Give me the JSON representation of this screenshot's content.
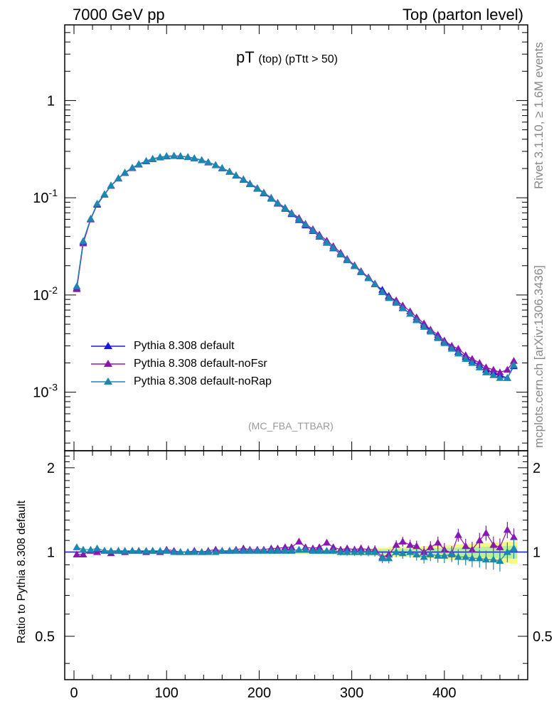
{
  "header": {
    "left": "7000 GeV pp",
    "right": "Top (parton level)"
  },
  "side": {
    "rivet": "Rivet 3.1.10, ≥ 1.6M events",
    "mcplots": "mcplots.cern.ch [arXiv:1306.3436]"
  },
  "plot": {
    "title_main": "pT",
    "title_sub": "(top) (pTtt > 50)",
    "watermark": "(MC_FBA_TTBAR)"
  },
  "ratio": {
    "ylabel": "Ratio to Pythia 8.308 default"
  },
  "legend": [
    {
      "label": "Pythia 8.308 default",
      "color": "#1a1ad6"
    },
    {
      "label": "Pythia 8.308 default-noFsr",
      "color": "#8a18b0"
    },
    {
      "label": "Pythia 8.308 default-noRap",
      "color": "#1a88b0"
    }
  ],
  "chart_data": [
    {
      "type": "line",
      "title": "pT (top) (pTtt > 50)",
      "xlabel": "",
      "ylabel": "",
      "xlim": [
        -10,
        490
      ],
      "ylim": [
        0.00025,
        6
      ],
      "log_y": true,
      "y_ticks": [
        "1",
        "10^-1",
        "10^-2",
        "10^-3"
      ],
      "x_ticks": [
        "0",
        "100",
        "200",
        "300",
        "400"
      ],
      "series": [
        {
          "name": "Pythia 8.308 default",
          "color": "#1a1ad6",
          "x": [
            3,
            10,
            18,
            25,
            33,
            40,
            48,
            55,
            63,
            70,
            78,
            85,
            93,
            100,
            108,
            115,
            123,
            130,
            138,
            145,
            153,
            160,
            168,
            175,
            183,
            190,
            198,
            205,
            213,
            220,
            228,
            235,
            243,
            250,
            258,
            265,
            273,
            280,
            288,
            295,
            303,
            310,
            318,
            325,
            333,
            340,
            348,
            355,
            363,
            370,
            378,
            385,
            393,
            400,
            408,
            415,
            423,
            430,
            438,
            445,
            453,
            460,
            468,
            475
          ],
          "y": [
            0.0118,
            0.035,
            0.06,
            0.085,
            0.108,
            0.133,
            0.158,
            0.18,
            0.202,
            0.22,
            0.237,
            0.25,
            0.26,
            0.266,
            0.269,
            0.267,
            0.262,
            0.254,
            0.243,
            0.231,
            0.216,
            0.201,
            0.185,
            0.169,
            0.153,
            0.138,
            0.124,
            0.111,
            0.098,
            0.087,
            0.077,
            0.068,
            0.059,
            0.052,
            0.0455,
            0.0398,
            0.0345,
            0.0302,
            0.0262,
            0.0228,
            0.0198,
            0.0172,
            0.0149,
            0.0129,
            0.0113,
            0.0098,
            0.0085,
            0.0074,
            0.0064,
            0.0056,
            0.0049,
            0.0043,
            0.0037,
            0.0033,
            0.0029,
            0.0026,
            0.0023,
            0.0021,
            0.0019,
            0.0017,
            0.0016,
            0.0015,
            0.0014,
            0.00185
          ]
        },
        {
          "name": "Pythia 8.308 default-noFsr",
          "color": "#8a18b0",
          "x": [
            3,
            10,
            18,
            25,
            33,
            40,
            48,
            55,
            63,
            70,
            78,
            85,
            93,
            100,
            108,
            115,
            123,
            130,
            138,
            145,
            153,
            160,
            168,
            175,
            183,
            190,
            198,
            205,
            213,
            220,
            228,
            235,
            243,
            250,
            258,
            265,
            273,
            280,
            288,
            295,
            303,
            310,
            318,
            325,
            333,
            340,
            348,
            355,
            363,
            370,
            378,
            385,
            393,
            400,
            408,
            415,
            423,
            430,
            438,
            445,
            453,
            460,
            468,
            475
          ],
          "y": [
            0.0115,
            0.034,
            0.06,
            0.086,
            0.108,
            0.133,
            0.158,
            0.181,
            0.203,
            0.221,
            0.238,
            0.251,
            0.262,
            0.268,
            0.27,
            0.268,
            0.263,
            0.255,
            0.244,
            0.232,
            0.217,
            0.202,
            0.186,
            0.17,
            0.155,
            0.14,
            0.126,
            0.113,
            0.1,
            0.089,
            0.079,
            0.07,
            0.062,
            0.054,
            0.0475,
            0.0418,
            0.0362,
            0.0318,
            0.0272,
            0.0235,
            0.0202,
            0.0176,
            0.0152,
            0.0131,
            0.0108,
            0.0096,
            0.0088,
            0.0078,
            0.0068,
            0.0059,
            0.0051,
            0.0044,
            0.0039,
            0.0034,
            0.003,
            0.0028,
            0.0024,
            0.0022,
            0.002,
            0.0018,
            0.0017,
            0.0016,
            0.0017,
            0.0021
          ]
        },
        {
          "name": "Pythia 8.308 default-noRap",
          "color": "#1a88b0",
          "x": [
            3,
            10,
            18,
            25,
            33,
            40,
            48,
            55,
            63,
            70,
            78,
            85,
            93,
            100,
            108,
            115,
            123,
            130,
            138,
            145,
            153,
            160,
            168,
            175,
            183,
            190,
            198,
            205,
            213,
            220,
            228,
            235,
            243,
            250,
            258,
            265,
            273,
            280,
            288,
            295,
            303,
            310,
            318,
            325,
            333,
            340,
            348,
            355,
            363,
            370,
            378,
            385,
            393,
            400,
            408,
            415,
            423,
            430,
            438,
            445,
            453,
            460,
            468,
            475
          ],
          "y": [
            0.0123,
            0.036,
            0.061,
            0.087,
            0.109,
            0.134,
            0.159,
            0.182,
            0.204,
            0.222,
            0.239,
            0.252,
            0.262,
            0.268,
            0.27,
            0.268,
            0.263,
            0.255,
            0.244,
            0.232,
            0.217,
            0.202,
            0.186,
            0.17,
            0.154,
            0.139,
            0.125,
            0.112,
            0.099,
            0.088,
            0.078,
            0.069,
            0.06,
            0.053,
            0.046,
            0.0402,
            0.0348,
            0.0305,
            0.0263,
            0.0229,
            0.0198,
            0.0172,
            0.0149,
            0.0129,
            0.0107,
            0.0093,
            0.0083,
            0.0073,
            0.0064,
            0.0055,
            0.0047,
            0.0042,
            0.0036,
            0.0032,
            0.0028,
            0.0025,
            0.0022,
            0.002,
            0.0018,
            0.0016,
            0.0015,
            0.0014,
            0.0014,
            0.0019
          ]
        }
      ]
    },
    {
      "type": "line",
      "title": "",
      "xlabel": "",
      "ylabel": "Ratio to Pythia 8.308 default",
      "xlim": [
        -10,
        490
      ],
      "ylim": [
        0.35,
        2.3
      ],
      "log_y": true,
      "y_ticks": [
        "2",
        "1",
        "0.5"
      ],
      "x_ticks": [
        "0",
        "100",
        "200",
        "300",
        "400"
      ],
      "reference": 1.0,
      "series": [
        {
          "name": "Pythia 8.308 default-noFsr",
          "color": "#8a18b0",
          "x": [
            3,
            10,
            18,
            25,
            33,
            40,
            48,
            55,
            63,
            70,
            78,
            85,
            93,
            100,
            108,
            115,
            123,
            130,
            138,
            145,
            153,
            160,
            168,
            175,
            183,
            190,
            198,
            205,
            213,
            220,
            228,
            235,
            243,
            250,
            258,
            265,
            273,
            280,
            288,
            295,
            303,
            310,
            318,
            325,
            333,
            340,
            348,
            355,
            363,
            370,
            378,
            385,
            393,
            400,
            408,
            415,
            423,
            430,
            438,
            445,
            453,
            460,
            468,
            475
          ],
          "y": [
            0.98,
            0.98,
            1.01,
            1.0,
            1.01,
            0.99,
            1.01,
            1.0,
            1.01,
            1.01,
            1.0,
            1.01,
            1.0,
            1.02,
            1.01,
            1.0,
            1.0,
            1.01,
            1.0,
            1.01,
            1.02,
            1.01,
            1.01,
            1.02,
            1.03,
            1.02,
            1.02,
            1.02,
            1.03,
            1.03,
            1.04,
            1.04,
            1.09,
            1.04,
            1.03,
            1.04,
            1.08,
            1.04,
            1.02,
            1.03,
            1.02,
            1.03,
            1.02,
            1.02,
            0.96,
            0.98,
            1.06,
            1.09,
            1.06,
            1.05,
            1.0,
            1.04,
            1.08,
            1.02,
            0.99,
            1.15,
            1.05,
            1.02,
            1.1,
            1.17,
            1.06,
            1.04,
            1.2,
            1.13
          ]
        },
        {
          "name": "Pythia 8.308 default-noRap",
          "color": "#1a88b0",
          "x": [
            3,
            10,
            18,
            25,
            33,
            40,
            48,
            55,
            63,
            70,
            78,
            85,
            93,
            100,
            108,
            115,
            123,
            130,
            138,
            145,
            153,
            160,
            168,
            175,
            183,
            190,
            198,
            205,
            213,
            220,
            228,
            235,
            243,
            250,
            258,
            265,
            273,
            280,
            288,
            295,
            303,
            310,
            318,
            325,
            333,
            340,
            348,
            355,
            363,
            370,
            378,
            385,
            393,
            400,
            408,
            415,
            423,
            430,
            438,
            445,
            453,
            460,
            468,
            475
          ],
          "y": [
            1.04,
            1.02,
            1.02,
            1.03,
            1.01,
            1.01,
            1.01,
            1.01,
            1.01,
            1.01,
            1.01,
            1.01,
            1.01,
            1.01,
            1.0,
            1.0,
            1.0,
            1.0,
            1.0,
            1.0,
            1.0,
            1.01,
            1.01,
            1.01,
            1.01,
            1.01,
            1.01,
            1.01,
            1.01,
            1.01,
            1.01,
            1.01,
            1.02,
            1.02,
            1.01,
            1.01,
            1.01,
            1.01,
            1.0,
            1.0,
            1.0,
            1.0,
            1.0,
            1.0,
            0.95,
            0.95,
            1.0,
            0.99,
            1.0,
            0.98,
            0.96,
            0.98,
            0.97,
            0.97,
            0.98,
            0.96,
            0.96,
            0.95,
            0.95,
            0.94,
            0.94,
            0.93,
            1.0,
            1.03
          ]
        }
      ]
    }
  ]
}
